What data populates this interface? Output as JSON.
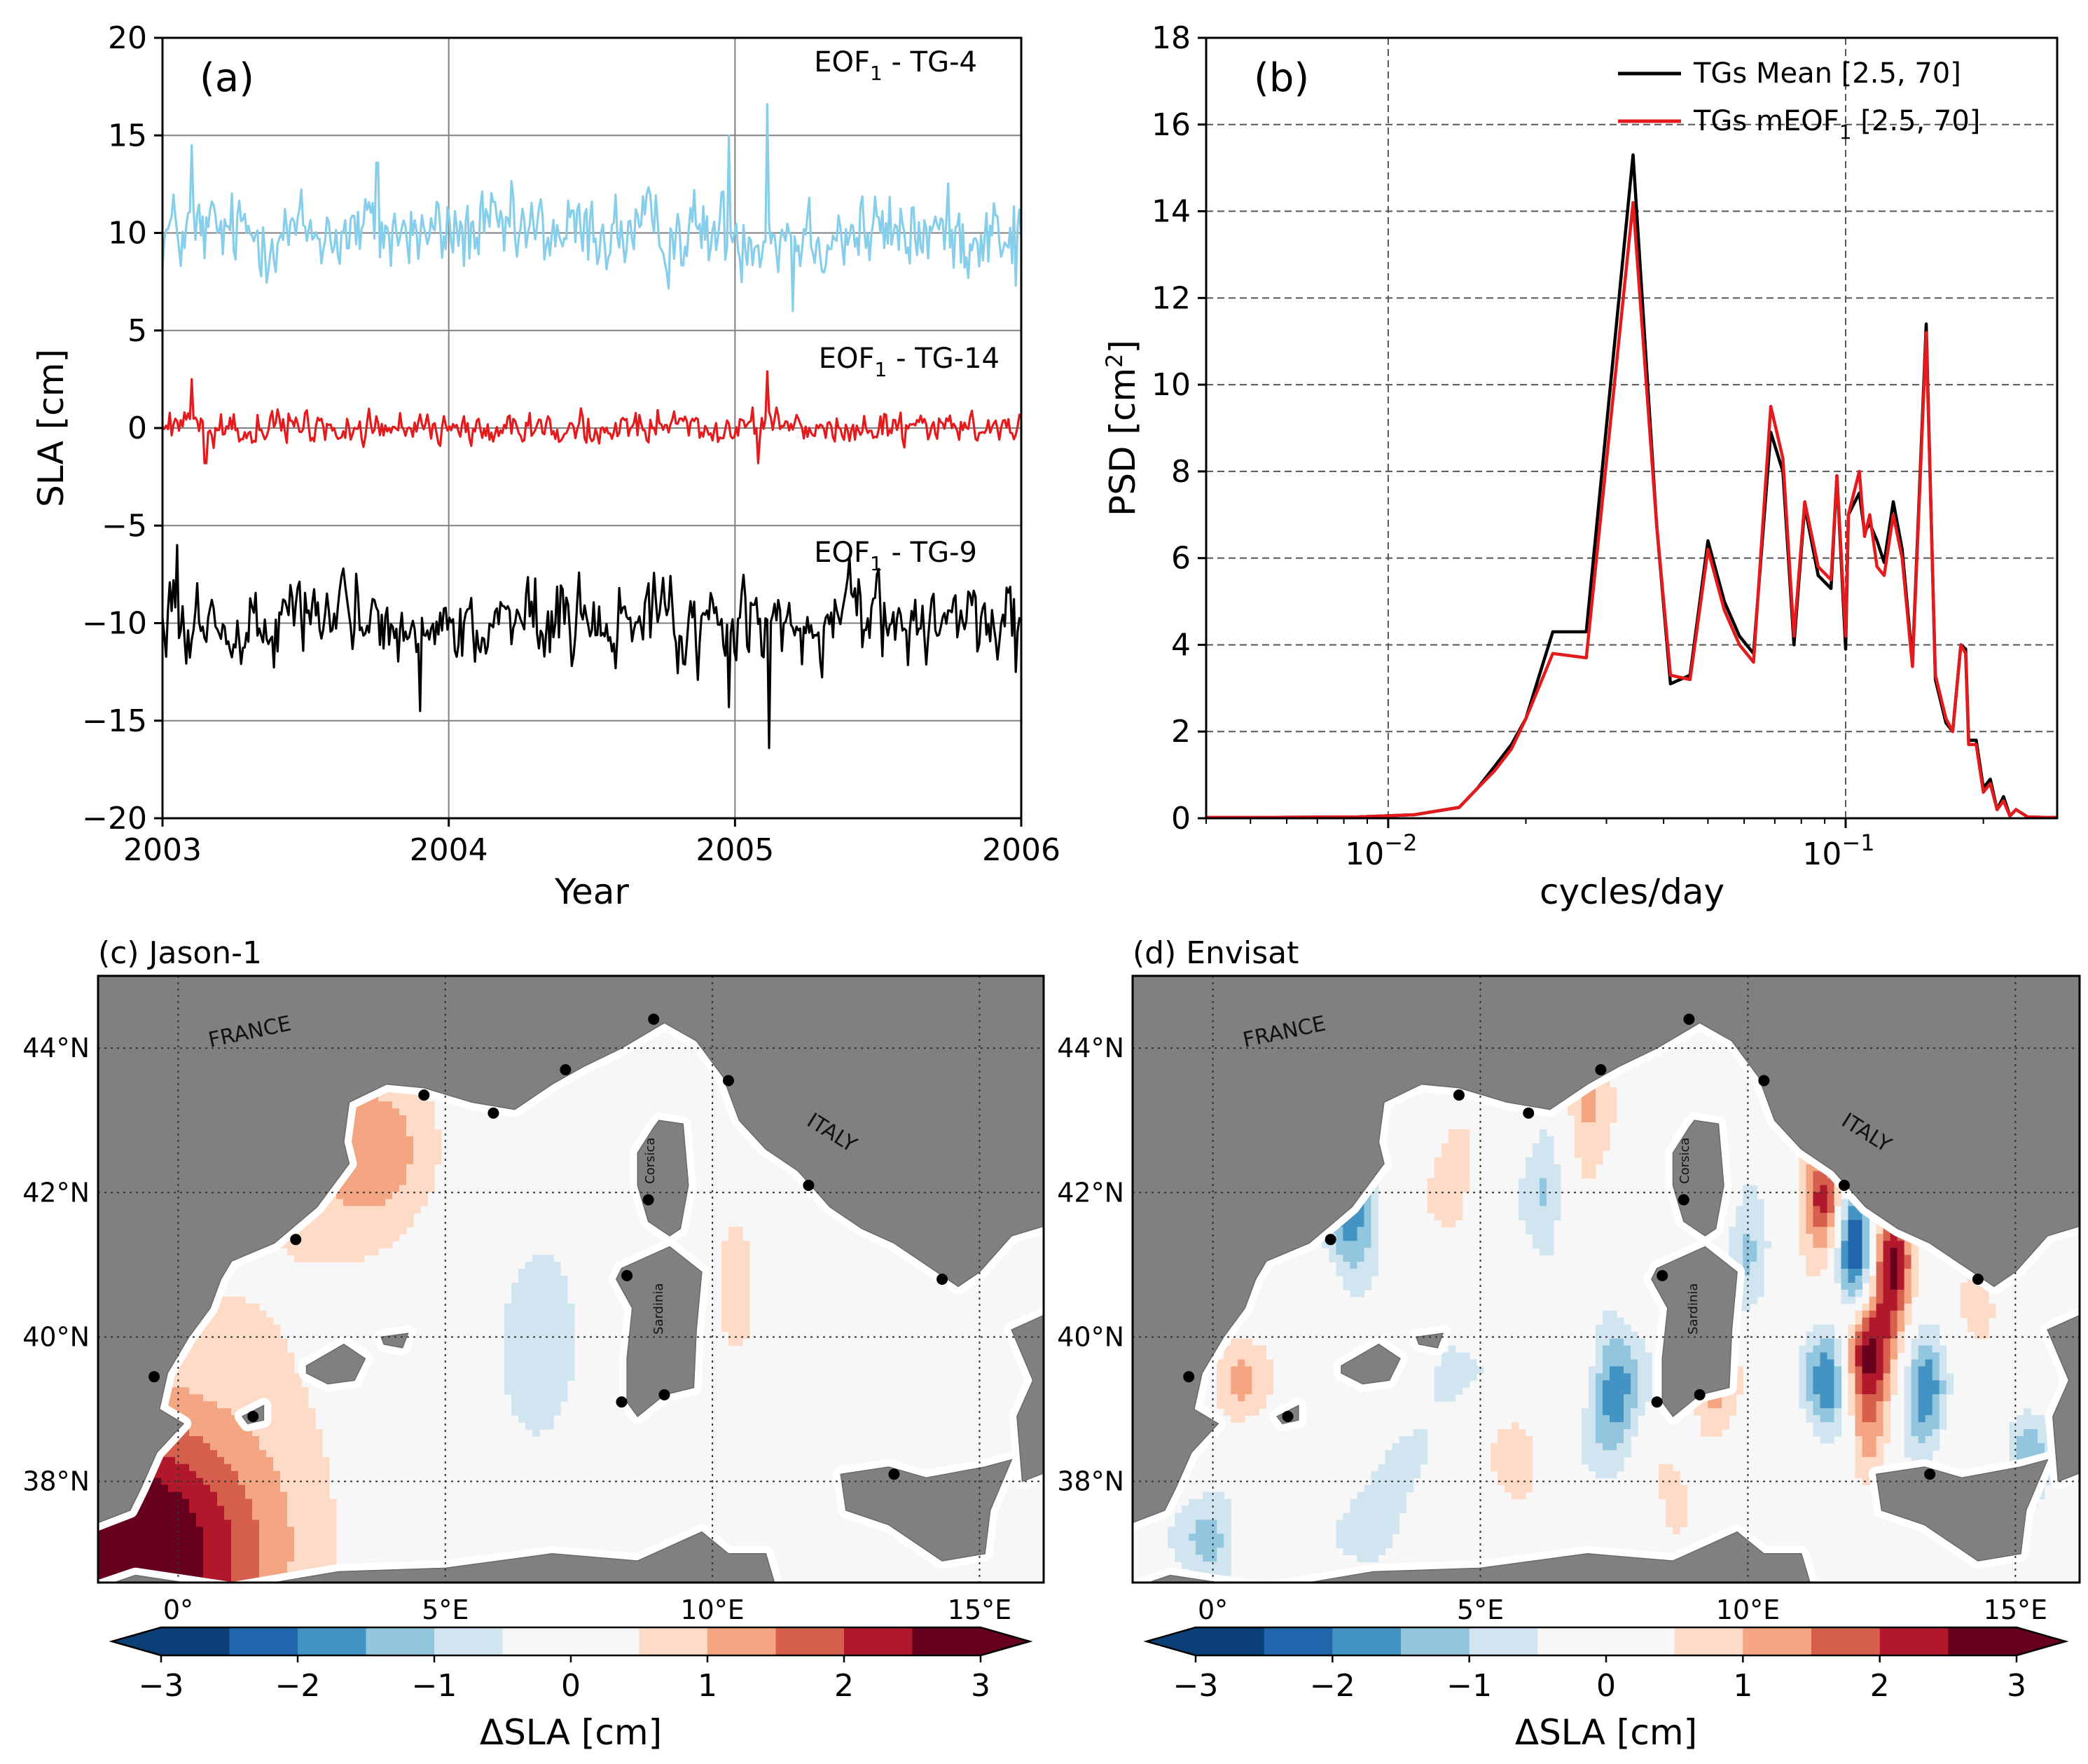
{
  "figure": "4-panel figure",
  "chart_data": [
    {
      "type": "line",
      "panel": "(a)",
      "xlabel": "Year",
      "ylabel": "SLA [cm]",
      "xlim": [
        2003,
        2006
      ],
      "ylim": [
        -20,
        20
      ],
      "xticks": [
        2003,
        2004,
        2005,
        2006
      ],
      "yticks": [
        -20,
        -15,
        -10,
        -5,
        0,
        5,
        10,
        15,
        20
      ],
      "grid": true,
      "series": [
        {
          "name": "EOF₁ - TG-4",
          "label_text": "EOF",
          "label_sub": "1",
          "label_suffix": " - TG-4",
          "color": "#87CEEB",
          "offset": 10,
          "std": 1.6,
          "extremes": [
            [
              2003.1,
              14.5
            ],
            [
              2003.75,
              13.6
            ],
            [
              2004.98,
              15.0
            ],
            [
              2005.11,
              16.6
            ],
            [
              2005.98,
              7.3
            ],
            [
              2005.2,
              6.0
            ]
          ]
        },
        {
          "name": "EOF₁ - TG-14",
          "label_text": "EOF",
          "label_sub": "1",
          "label_suffix": " - TG-14",
          "color": "#e41a1c",
          "offset": 0,
          "std": 0.6,
          "extremes": [
            [
              2003.1,
              2.5
            ],
            [
              2005.11,
              2.9
            ],
            [
              2005.08,
              -1.8
            ],
            [
              2003.15,
              -1.8
            ]
          ]
        },
        {
          "name": "EOF₁ - TG-9",
          "label_text": "EOF",
          "label_sub": "1",
          "label_suffix": " - TG-9",
          "color": "#000000",
          "offset": -10,
          "std": 1.6,
          "extremes": [
            [
              2003.05,
              -6.0
            ],
            [
              2003.9,
              -6.0
            ],
            [
              2003.9,
              -14.5
            ],
            [
              2005.12,
              -16.4
            ],
            [
              2004.98,
              -14.3
            ],
            [
              2005.98,
              -12.5
            ]
          ]
        }
      ]
    },
    {
      "type": "line",
      "panel": "(b)",
      "xlabel": "cycles/day",
      "ylabel_main": "PSD [cm",
      "ylabel_sup": "2",
      "ylabel_end": "]",
      "xscale": "log",
      "xlim": [
        0.004,
        0.29
      ],
      "ylim": [
        0,
        18
      ],
      "yticks": [
        0,
        2,
        4,
        6,
        8,
        10,
        12,
        14,
        16,
        18
      ],
      "xtick_majors": [
        {
          "value": 0.01,
          "base": "10",
          "exp": "−2"
        },
        {
          "value": 0.1,
          "base": "10",
          "exp": "−1"
        }
      ],
      "legend_position": "top-right",
      "series": [
        {
          "name": "TGs Mean [2.5, 70]",
          "color": "#000000",
          "points": [
            [
              0.004,
              0.02
            ],
            [
              0.0057,
              0.02
            ],
            [
              0.0086,
              0.03
            ],
            [
              0.0114,
              0.08
            ],
            [
              0.0143,
              0.25
            ],
            [
              0.0157,
              0.7
            ],
            [
              0.0171,
              1.2
            ],
            [
              0.0186,
              1.7
            ],
            [
              0.02,
              2.3
            ],
            [
              0.0229,
              4.3
            ],
            [
              0.0271,
              4.3
            ],
            [
              0.0343,
              15.3
            ],
            [
              0.0386,
              6.8
            ],
            [
              0.0414,
              3.1
            ],
            [
              0.0457,
              3.3
            ],
            [
              0.05,
              6.4
            ],
            [
              0.0543,
              5.0
            ],
            [
              0.0586,
              4.2
            ],
            [
              0.0629,
              3.8
            ],
            [
              0.0686,
              8.9
            ],
            [
              0.0729,
              8.0
            ],
            [
              0.0771,
              4.0
            ],
            [
              0.0814,
              7.2
            ],
            [
              0.0871,
              5.6
            ],
            [
              0.0929,
              5.3
            ],
            [
              0.0957,
              7.9
            ],
            [
              0.1,
              3.9
            ],
            [
              0.1014,
              7.0
            ],
            [
              0.1071,
              7.5
            ],
            [
              0.11,
              6.6
            ],
            [
              0.1129,
              6.8
            ],
            [
              0.1171,
              6.4
            ],
            [
              0.1214,
              5.9
            ],
            [
              0.1271,
              7.3
            ],
            [
              0.1329,
              6.2
            ],
            [
              0.14,
              3.6
            ],
            [
              0.15,
              11.4
            ],
            [
              0.1571,
              3.2
            ],
            [
              0.1657,
              2.2
            ],
            [
              0.1714,
              2.0
            ],
            [
              0.1786,
              4.0
            ],
            [
              0.1829,
              3.9
            ],
            [
              0.1857,
              1.8
            ],
            [
              0.1929,
              1.8
            ],
            [
              0.2,
              0.7
            ],
            [
              0.2071,
              0.9
            ],
            [
              0.2143,
              0.2
            ],
            [
              0.2214,
              0.5
            ],
            [
              0.2286,
              0.05
            ],
            [
              0.2357,
              0.2
            ],
            [
              0.25,
              0.03
            ],
            [
              0.27,
              0.02
            ],
            [
              0.29,
              0.02
            ]
          ]
        },
        {
          "name": "TGs mEOF₁ [2.5, 70]",
          "label_text": "TGs mEOF",
          "label_sub": "1",
          "label_suffix": " [2.5, 70]",
          "color": "#e41a1c",
          "points": [
            [
              0.004,
              0.02
            ],
            [
              0.0057,
              0.02
            ],
            [
              0.0086,
              0.03
            ],
            [
              0.0114,
              0.08
            ],
            [
              0.0143,
              0.25
            ],
            [
              0.0157,
              0.7
            ],
            [
              0.0171,
              1.1
            ],
            [
              0.0186,
              1.6
            ],
            [
              0.02,
              2.3
            ],
            [
              0.0229,
              3.8
            ],
            [
              0.0271,
              3.7
            ],
            [
              0.0343,
              14.2
            ],
            [
              0.0386,
              6.8
            ],
            [
              0.0414,
              3.3
            ],
            [
              0.0457,
              3.2
            ],
            [
              0.05,
              6.2
            ],
            [
              0.0543,
              4.8
            ],
            [
              0.0586,
              4.0
            ],
            [
              0.0629,
              3.6
            ],
            [
              0.0686,
              9.5
            ],
            [
              0.0729,
              8.3
            ],
            [
              0.0771,
              4.2
            ],
            [
              0.0814,
              7.3
            ],
            [
              0.0871,
              5.8
            ],
            [
              0.0929,
              5.5
            ],
            [
              0.0957,
              7.9
            ],
            [
              0.1,
              4.2
            ],
            [
              0.1014,
              7.0
            ],
            [
              0.1071,
              8.0
            ],
            [
              0.11,
              6.5
            ],
            [
              0.1129,
              7.0
            ],
            [
              0.1171,
              5.8
            ],
            [
              0.1214,
              5.6
            ],
            [
              0.1271,
              7.0
            ],
            [
              0.1329,
              6.0
            ],
            [
              0.14,
              3.5
            ],
            [
              0.15,
              11.2
            ],
            [
              0.1571,
              3.3
            ],
            [
              0.1657,
              2.3
            ],
            [
              0.1714,
              2.0
            ],
            [
              0.1786,
              4.0
            ],
            [
              0.1829,
              3.8
            ],
            [
              0.1857,
              1.7
            ],
            [
              0.1929,
              1.7
            ],
            [
              0.2,
              0.6
            ],
            [
              0.2071,
              0.8
            ],
            [
              0.2143,
              0.2
            ],
            [
              0.2214,
              0.4
            ],
            [
              0.2286,
              0.05
            ],
            [
              0.2357,
              0.2
            ],
            [
              0.25,
              0.03
            ],
            [
              0.27,
              0.02
            ],
            [
              0.29,
              0.02
            ]
          ]
        }
      ]
    },
    {
      "type": "heatmap",
      "panel": "(c) Jason-1",
      "title": "(c) Jason-1",
      "xlabel": "ΔSLA [cm]",
      "lon_range": [
        -1.5,
        16.2
      ],
      "lat_range": [
        36.6,
        45.0
      ],
      "lon_ticks": [
        "0°",
        "5°E",
        "10°E",
        "15°E"
      ],
      "lon_tick_values": [
        0,
        5,
        10,
        15
      ],
      "lat_ticks": [
        "38°N",
        "40°N",
        "42°N",
        "44°N"
      ],
      "lat_tick_values": [
        38,
        40,
        42,
        44
      ],
      "colorbar_range": [
        -3,
        3
      ],
      "colorbar_ticks": [
        "−3",
        "−2",
        "−1",
        "0",
        "1",
        "2",
        "3"
      ],
      "labels": {
        "france": "FRANCE",
        "italy": "ITALY",
        "corsica": "Corsica",
        "sardinia": "Sardinia"
      },
      "features": [
        {
          "lon": -1.2,
          "lat": 36.9,
          "amp": 3.4,
          "sx": 2.0,
          "sy": 1.4
        },
        {
          "lon": 3.7,
          "lat": 42.6,
          "amp": 1.3,
          "sx": 1.0,
          "sy": 0.9
        },
        {
          "lon": 10.4,
          "lat": 40.8,
          "amp": 0.7,
          "sx": 0.4,
          "sy": 1.0
        },
        {
          "lon": 6.5,
          "lat": 40.0,
          "amp": -0.6,
          "sx": 1.8,
          "sy": 3.0
        },
        {
          "lon": 13.8,
          "lat": 40.5,
          "amp": -0.45,
          "sx": 0.9,
          "sy": 0.7
        },
        {
          "lon": 12.0,
          "lat": 38.5,
          "amp": 0.4,
          "sx": 1.2,
          "sy": 1.4
        },
        {
          "lon": 1.5,
          "lat": 40.5,
          "amp": 0.45,
          "sx": 2.5,
          "sy": 2.5
        }
      ]
    },
    {
      "type": "heatmap",
      "panel": "(d) Envisat",
      "title": "(d) Envisat",
      "xlabel": "ΔSLA [cm]",
      "lon_range": [
        -1.5,
        16.2
      ],
      "lat_range": [
        36.6,
        45.0
      ],
      "lon_ticks": [
        "0°",
        "5°E",
        "10°E",
        "15°E"
      ],
      "lon_tick_values": [
        0,
        5,
        10,
        15
      ],
      "lat_ticks": [
        "38°N",
        "40°N",
        "42°N",
        "44°N"
      ],
      "lat_tick_values": [
        38,
        40,
        42,
        44
      ],
      "colorbar_range": [
        -3,
        3
      ],
      "colorbar_ticks": [
        "−3",
        "−2",
        "−1",
        "0",
        "1",
        "2",
        "3"
      ],
      "labels": {
        "france": "FRANCE",
        "italy": "ITALY",
        "corsica": "Corsica",
        "sardinia": "Sardinia"
      },
      "features": [
        {
          "lon": 11.4,
          "lat": 41.9,
          "amp": 2.6,
          "sx": 0.3,
          "sy": 0.5
        },
        {
          "lon": 12.0,
          "lat": 41.3,
          "amp": -2.8,
          "sx": 0.25,
          "sy": 0.7
        },
        {
          "lon": 12.7,
          "lat": 40.9,
          "amp": 3.0,
          "sx": 0.28,
          "sy": 0.6
        },
        {
          "lon": 12.2,
          "lat": 39.8,
          "amp": 2.6,
          "sx": 0.3,
          "sy": 0.55
        },
        {
          "lon": 12.3,
          "lat": 38.6,
          "amp": 1.3,
          "sx": 0.3,
          "sy": 0.5
        },
        {
          "lon": 11.5,
          "lat": 39.3,
          "amp": -1.8,
          "sx": 0.3,
          "sy": 0.6
        },
        {
          "lon": 13.3,
          "lat": 39.3,
          "amp": -2.0,
          "sx": 0.3,
          "sy": 0.6
        },
        {
          "lon": 7.5,
          "lat": 39.2,
          "amp": -1.8,
          "sx": 0.35,
          "sy": 0.7
        },
        {
          "lon": 2.6,
          "lat": 41.6,
          "amp": -1.6,
          "sx": 0.35,
          "sy": 0.8
        },
        {
          "lon": 6.2,
          "lat": 42.0,
          "amp": -1.2,
          "sx": 0.3,
          "sy": 0.6
        },
        {
          "lon": 7.0,
          "lat": 43.2,
          "amp": 1.4,
          "sx": 0.35,
          "sy": 0.6
        },
        {
          "lon": 4.5,
          "lat": 42.2,
          "amp": 0.9,
          "sx": 0.3,
          "sy": 0.6
        },
        {
          "lon": 10.0,
          "lat": 41.5,
          "amp": -1.1,
          "sx": 0.3,
          "sy": 0.7
        },
        {
          "lon": 9.4,
          "lat": 39.0,
          "amp": 1.0,
          "sx": 0.3,
          "sy": 0.5
        },
        {
          "lon": 0.5,
          "lat": 39.3,
          "amp": 0.9,
          "sx": 0.4,
          "sy": 0.5
        },
        {
          "lon": 14.3,
          "lat": 39.8,
          "amp": 0.7,
          "sx": 0.4,
          "sy": 0.6
        },
        {
          "lon": 15.2,
          "lat": 38.3,
          "amp": -1.3,
          "sx": 0.3,
          "sy": 0.5
        },
        {
          "lon": 0.0,
          "lat": 37.2,
          "amp": -1.2,
          "sx": 0.4,
          "sy": 0.5
        },
        {
          "lon": 3.2,
          "lat": 37.5,
          "amp": -0.9,
          "sx": 0.5,
          "sy": 0.6
        },
        {
          "lon": 8.6,
          "lat": 37.5,
          "amp": 0.8,
          "sx": 0.3,
          "sy": 0.5
        },
        {
          "lon": 4.2,
          "lat": 39.5,
          "amp": -0.7,
          "sx": 0.5,
          "sy": 0.6
        },
        {
          "lon": 5.7,
          "lat": 38.2,
          "amp": 0.8,
          "sx": 0.3,
          "sy": 0.5
        }
      ]
    }
  ],
  "colors": {
    "land": "#808080",
    "coast_buffer": "#ffffff",
    "scale": [
      "#0b3f78",
      "#2166ac",
      "#4393c3",
      "#92c5de",
      "#d1e5f0",
      "#f7f7f7",
      "#fddbc7",
      "#f4a582",
      "#d6604d",
      "#b2182b",
      "#67001f"
    ]
  }
}
